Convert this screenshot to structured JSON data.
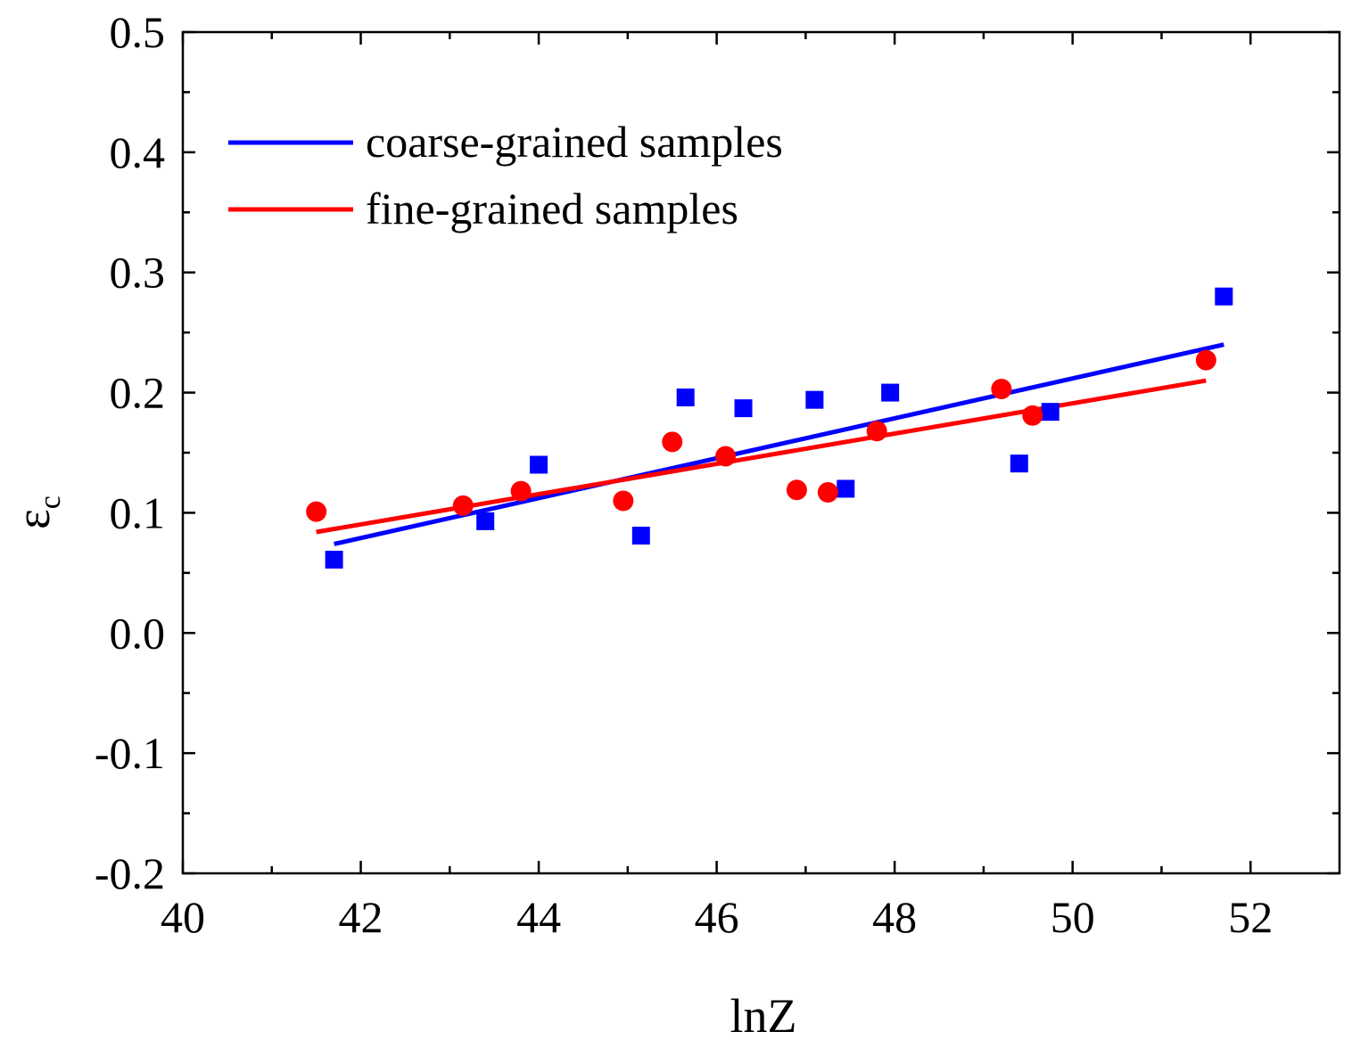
{
  "chart_data": {
    "type": "scatter",
    "title": "",
    "xlabel": "lnZ",
    "ylabel": "ε",
    "ylabel_sub": "c",
    "xlim": [
      40,
      53
    ],
    "ylim": [
      -0.2,
      0.5
    ],
    "x_ticks": [
      40,
      42,
      44,
      46,
      48,
      50,
      52
    ],
    "x_tick_labels": [
      "40",
      "42",
      "44",
      "46",
      "48",
      "50",
      "52"
    ],
    "y_ticks": [
      -0.2,
      -0.1,
      0.0,
      0.1,
      0.2,
      0.3,
      0.4,
      0.5
    ],
    "y_tick_labels": [
      "-0.2",
      "-0.1",
      "0.0",
      "0.1",
      "0.2",
      "0.3",
      "0.4",
      "0.5"
    ],
    "legend_position": "top-left",
    "series": [
      {
        "name": "coarse-grained samples",
        "color": "#0000ff",
        "marker": "square",
        "points": [
          [
            41.7,
            0.061
          ],
          [
            43.4,
            0.093
          ],
          [
            44.0,
            0.14
          ],
          [
            45.15,
            0.081
          ],
          [
            45.65,
            0.196
          ],
          [
            46.3,
            0.187
          ],
          [
            47.1,
            0.194
          ],
          [
            47.45,
            0.12
          ],
          [
            47.95,
            0.2
          ],
          [
            49.4,
            0.141
          ],
          [
            49.75,
            0.184
          ],
          [
            51.7,
            0.28
          ]
        ],
        "fit_line": [
          [
            41.7,
            0.074
          ],
          [
            51.7,
            0.24
          ]
        ]
      },
      {
        "name": "fine-grained samples",
        "color": "#ff0000",
        "marker": "circle",
        "points": [
          [
            41.5,
            0.101
          ],
          [
            43.15,
            0.106
          ],
          [
            43.8,
            0.118
          ],
          [
            44.95,
            0.11
          ],
          [
            45.5,
            0.159
          ],
          [
            46.1,
            0.147
          ],
          [
            46.9,
            0.119
          ],
          [
            47.25,
            0.117
          ],
          [
            47.8,
            0.168
          ],
          [
            49.2,
            0.203
          ],
          [
            49.55,
            0.181
          ],
          [
            51.5,
            0.227
          ]
        ],
        "fit_line": [
          [
            41.5,
            0.084
          ],
          [
            51.5,
            0.21
          ]
        ]
      }
    ]
  }
}
